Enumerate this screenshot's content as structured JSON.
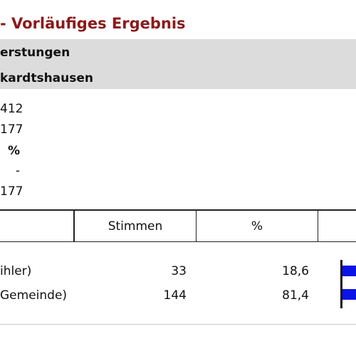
{
  "header": {
    "title": "- Vorläufiges Ergebnis",
    "band_lines": [
      "erstungen",
      "kardtshausen"
    ]
  },
  "summary": [
    "412",
    "177",
    "%",
    "-",
    "177"
  ],
  "table": {
    "columns": [
      "Stimmen",
      "%"
    ],
    "rows": [
      [
        "ihler)",
        "33",
        "18,6"
      ],
      [
        "Gemeinde)",
        "144",
        "81,4"
      ]
    ]
  }
}
